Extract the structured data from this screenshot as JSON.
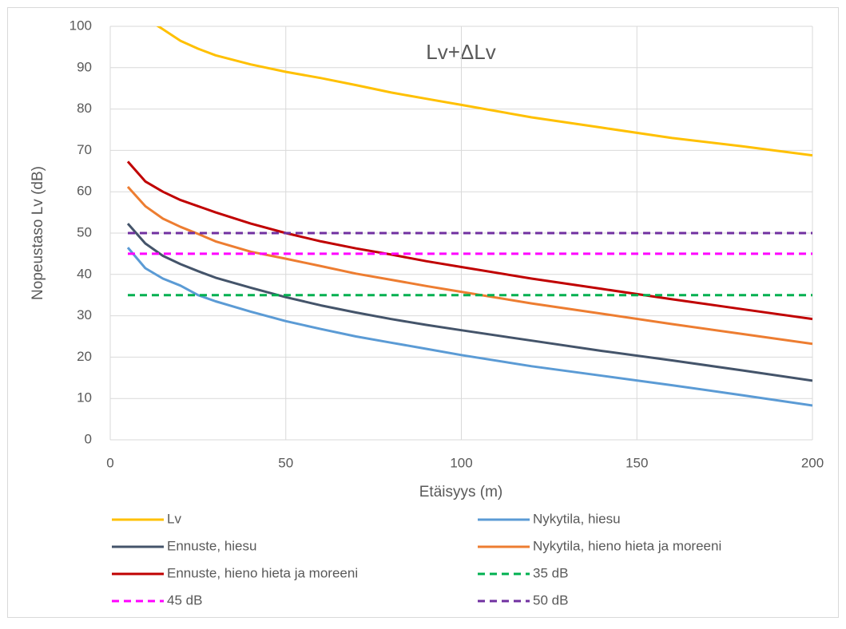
{
  "chart_data": {
    "type": "line",
    "title": "Lv+ΔLv",
    "x_label": "Etäisyys (m)",
    "y_label": "Nopeustaso Lv (dB)",
    "x": [
      5,
      10,
      15,
      20,
      25,
      30,
      40,
      50,
      60,
      70,
      80,
      90,
      100,
      120,
      140,
      160,
      180,
      200
    ],
    "xlim": [
      0,
      200
    ],
    "xticks": [
      0,
      50,
      100,
      150,
      200
    ],
    "ylim": [
      0,
      100
    ],
    "yticks": [
      0,
      10,
      20,
      30,
      40,
      50,
      60,
      70,
      80,
      90,
      100
    ],
    "grid": true,
    "series": [
      {
        "name": "Lv",
        "color": "#ffc000",
        "dashed": false,
        "values": [
          107,
          102,
          99.3,
          96.5,
          94.6,
          93,
          90.8,
          89,
          87.5,
          85.8,
          84,
          82.5,
          81,
          78,
          75.5,
          73,
          71,
          68.8
        ]
      },
      {
        "name": "Nykytila, hiesu",
        "color": "#5b9bd5",
        "dashed": false,
        "values": [
          46.5,
          41.5,
          39,
          37.3,
          35,
          33.5,
          31,
          28.7,
          26.8,
          25,
          23.5,
          22,
          20.5,
          17.8,
          15.5,
          13.2,
          10.8,
          8.3
        ]
      },
      {
        "name": "Ennuste, hiesu",
        "color": "#44546a",
        "dashed": false,
        "values": [
          52.3,
          47.5,
          44.5,
          42.5,
          40.8,
          39.2,
          36.8,
          34.5,
          32.5,
          30.8,
          29.2,
          27.8,
          26.5,
          24,
          21.5,
          19.2,
          16.8,
          14.3
        ]
      },
      {
        "name": "Nykytila, hieno hieta ja moreeni",
        "color": "#ed7d31",
        "dashed": false,
        "values": [
          61.2,
          56.5,
          53.5,
          51.5,
          49.8,
          48,
          45.5,
          43.8,
          42,
          40.2,
          38.7,
          37.2,
          35.8,
          33,
          30.5,
          28,
          25.6,
          23.2
        ]
      },
      {
        "name": "Ennuste, hieno hieta ja moreeni",
        "color": "#c00000",
        "dashed": false,
        "values": [
          67.3,
          62.5,
          60,
          58,
          56.5,
          55,
          52.3,
          50,
          48,
          46.3,
          44.8,
          43.2,
          41.8,
          39,
          36.5,
          34,
          31.6,
          29.2
        ]
      },
      {
        "name": "35 dB",
        "color": "#00b050",
        "dashed": true,
        "values": [
          35,
          35,
          35,
          35,
          35,
          35,
          35,
          35,
          35,
          35,
          35,
          35,
          35,
          35,
          35,
          35,
          35,
          35
        ]
      },
      {
        "name": "45 dB",
        "color": "#ff00ff",
        "dashed": true,
        "values": [
          45,
          45,
          45,
          45,
          45,
          45,
          45,
          45,
          45,
          45,
          45,
          45,
          45,
          45,
          45,
          45,
          45,
          45
        ]
      },
      {
        "name": "50 dB",
        "color": "#7030a0",
        "dashed": true,
        "values": [
          50,
          50,
          50,
          50,
          50,
          50,
          50,
          50,
          50,
          50,
          50,
          50,
          50,
          50,
          50,
          50,
          50,
          50
        ]
      }
    ]
  }
}
